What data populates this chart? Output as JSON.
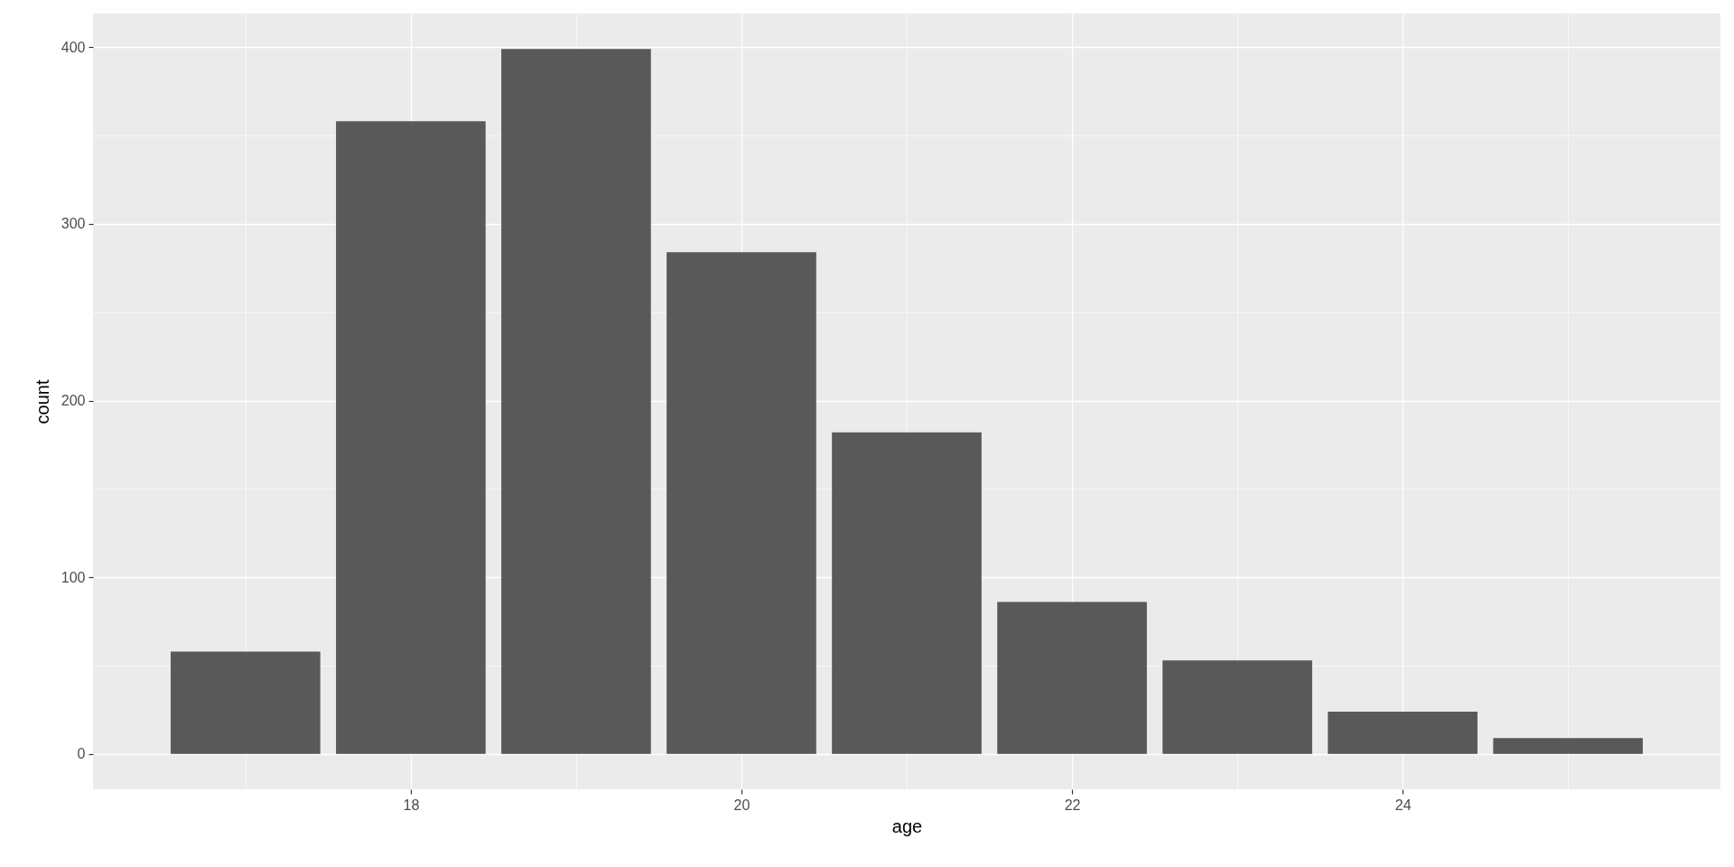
{
  "chart_data": {
    "type": "bar",
    "xlabel": "age",
    "ylabel": "count",
    "x": [
      17,
      18,
      19,
      20,
      21,
      22,
      23,
      24,
      25
    ],
    "values": [
      58,
      358,
      399,
      284,
      182,
      86,
      53,
      24,
      9
    ],
    "color": "#595959",
    "xlim": [
      16.105,
      25.895
    ],
    "xticks": [
      {
        "value": 17,
        "label": null
      },
      18,
      {
        "value": 19,
        "label": null
      },
      20,
      {
        "value": 21,
        "label": null
      },
      22,
      {
        "value": 23,
        "label": null
      },
      24,
      {
        "value": 25,
        "label": null
      }
    ],
    "ylim": [
      -20,
      419
    ],
    "yticks": [
      0,
      {
        "value": 50,
        "label": null
      },
      100,
      {
        "value": 150,
        "label": null
      },
      200,
      {
        "value": 250,
        "label": null
      },
      300,
      {
        "value": 350,
        "label": null
      },
      400
    ],
    "grid": true
  }
}
